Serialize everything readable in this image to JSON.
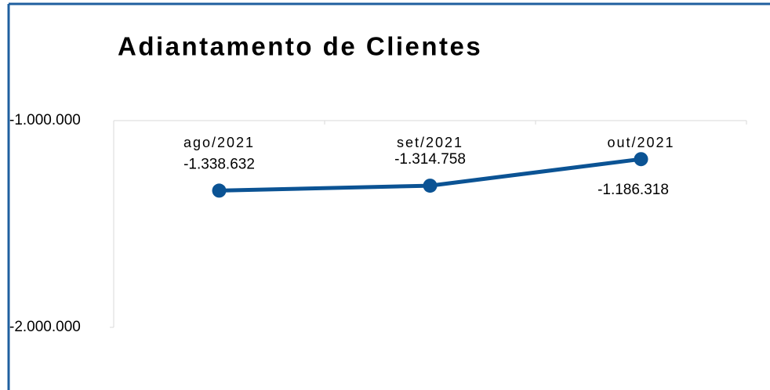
{
  "chart_data": {
    "type": "line",
    "title": "Adiantamento de Clientes",
    "categories": [
      "ago/2021",
      "set/2021",
      "out/2021"
    ],
    "series": [
      {
        "name": "Adiantamento de Clientes",
        "color": "#0b5394",
        "values": [
          -1338632,
          -1314758,
          -1186318
        ],
        "value_labels": [
          "-1.338.632",
          "-1.314.758",
          "-1.186.318"
        ]
      }
    ],
    "ylim": [
      -2000000,
      -1000000
    ],
    "yticks": [
      {
        "value": -2000000,
        "label": "-2.000.000"
      },
      {
        "value": -1000000,
        "label": "-1.000.000"
      }
    ],
    "grid": true
  }
}
